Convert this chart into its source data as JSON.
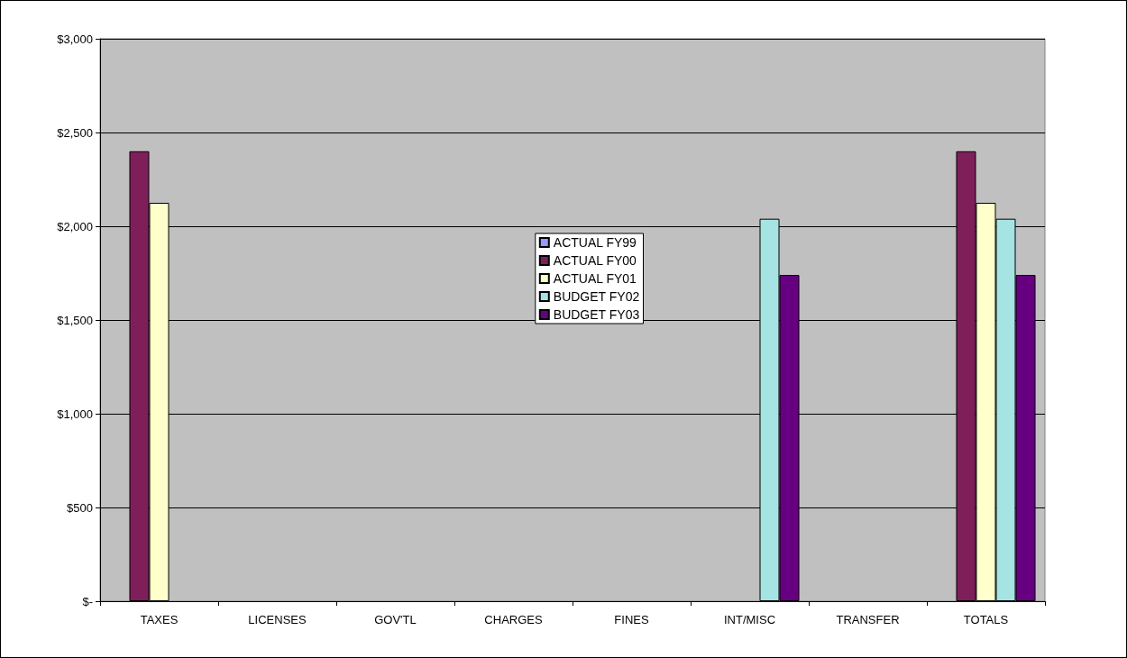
{
  "chart_data": {
    "type": "bar",
    "categories": [
      "TAXES",
      "LICENSES",
      "GOV'TL",
      "CHARGES",
      "FINES",
      "INT/MISC",
      "TRANSFER",
      "TOTALS"
    ],
    "series": [
      {
        "name": "ACTUAL FY99",
        "color": "#9999ff",
        "values": [
          null,
          null,
          null,
          null,
          null,
          null,
          null,
          null
        ]
      },
      {
        "name": "ACTUAL FY00",
        "color": "#7f1f5a",
        "values": [
          2400,
          null,
          null,
          null,
          null,
          null,
          null,
          2400
        ]
      },
      {
        "name": "ACTUAL FY01",
        "color": "#ffffcc",
        "values": [
          2125,
          null,
          null,
          null,
          null,
          null,
          null,
          2125
        ]
      },
      {
        "name": "BUDGET FY02",
        "color": "#a6e3e3",
        "values": [
          null,
          null,
          null,
          null,
          null,
          2040,
          null,
          2040
        ]
      },
      {
        "name": "BUDGET FY03",
        "color": "#660080",
        "values": [
          null,
          null,
          null,
          null,
          null,
          1740,
          null,
          1740
        ]
      }
    ],
    "ylim": [
      0,
      3000
    ],
    "yticks": [
      {
        "value": 0,
        "label": "$-"
      },
      {
        "value": 500,
        "label": "$500"
      },
      {
        "value": 1000,
        "label": "$1,000"
      },
      {
        "value": 1500,
        "label": "$1,500"
      },
      {
        "value": 2000,
        "label": "$2,000"
      },
      {
        "value": 2500,
        "label": "$2,500"
      },
      {
        "value": 3000,
        "label": "$3,000"
      }
    ],
    "grid": "y",
    "legend": "center"
  }
}
